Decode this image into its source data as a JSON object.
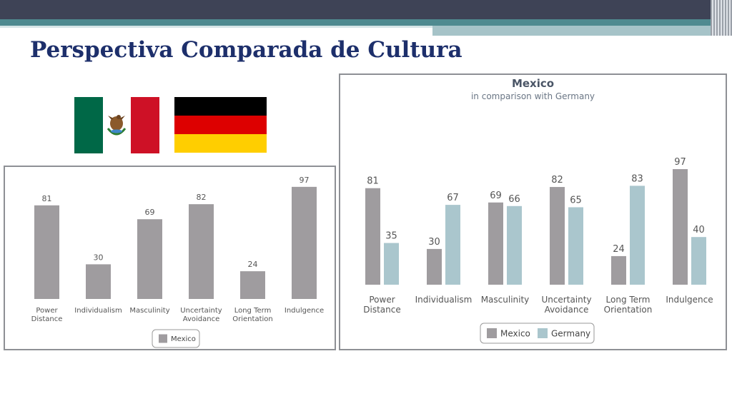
{
  "slide": {
    "title": "Perspectiva Comparada de Cultura"
  },
  "flags": {
    "mexico": "mexico-flag",
    "germany": "germany-flag"
  },
  "colors": {
    "mexico": "#9f9c9f",
    "germany": "#aac6cd",
    "title": "#1d2f6b"
  },
  "chart_data": [
    {
      "type": "bar",
      "categories": [
        [
          "Power",
          "Distance"
        ],
        [
          "Individualism"
        ],
        [
          "Masculinity"
        ],
        [
          "Uncertainty",
          "Avoidance"
        ],
        [
          "Long Term",
          "Orientation"
        ],
        [
          "Indulgence"
        ]
      ],
      "series": [
        {
          "name": "Mexico",
          "values": [
            81,
            30,
            69,
            82,
            24,
            97
          ]
        }
      ],
      "ylim": [
        0,
        100
      ],
      "legend": "bottom-center",
      "grid": false
    },
    {
      "type": "bar",
      "title": "Mexico",
      "subtitle": "in comparison with Germany",
      "categories": [
        [
          "Power",
          "Distance"
        ],
        [
          "Individualism"
        ],
        [
          "Masculinity"
        ],
        [
          "Uncertainty",
          "Avoidance"
        ],
        [
          "Long Term",
          "Orientation"
        ],
        [
          "Indulgence"
        ]
      ],
      "series": [
        {
          "name": "Mexico",
          "values": [
            81,
            30,
            69,
            82,
            24,
            97
          ]
        },
        {
          "name": "Germany",
          "values": [
            35,
            67,
            66,
            65,
            83,
            40
          ]
        }
      ],
      "ylim": [
        0,
        100
      ],
      "legend": "bottom-center",
      "grid": false
    }
  ]
}
